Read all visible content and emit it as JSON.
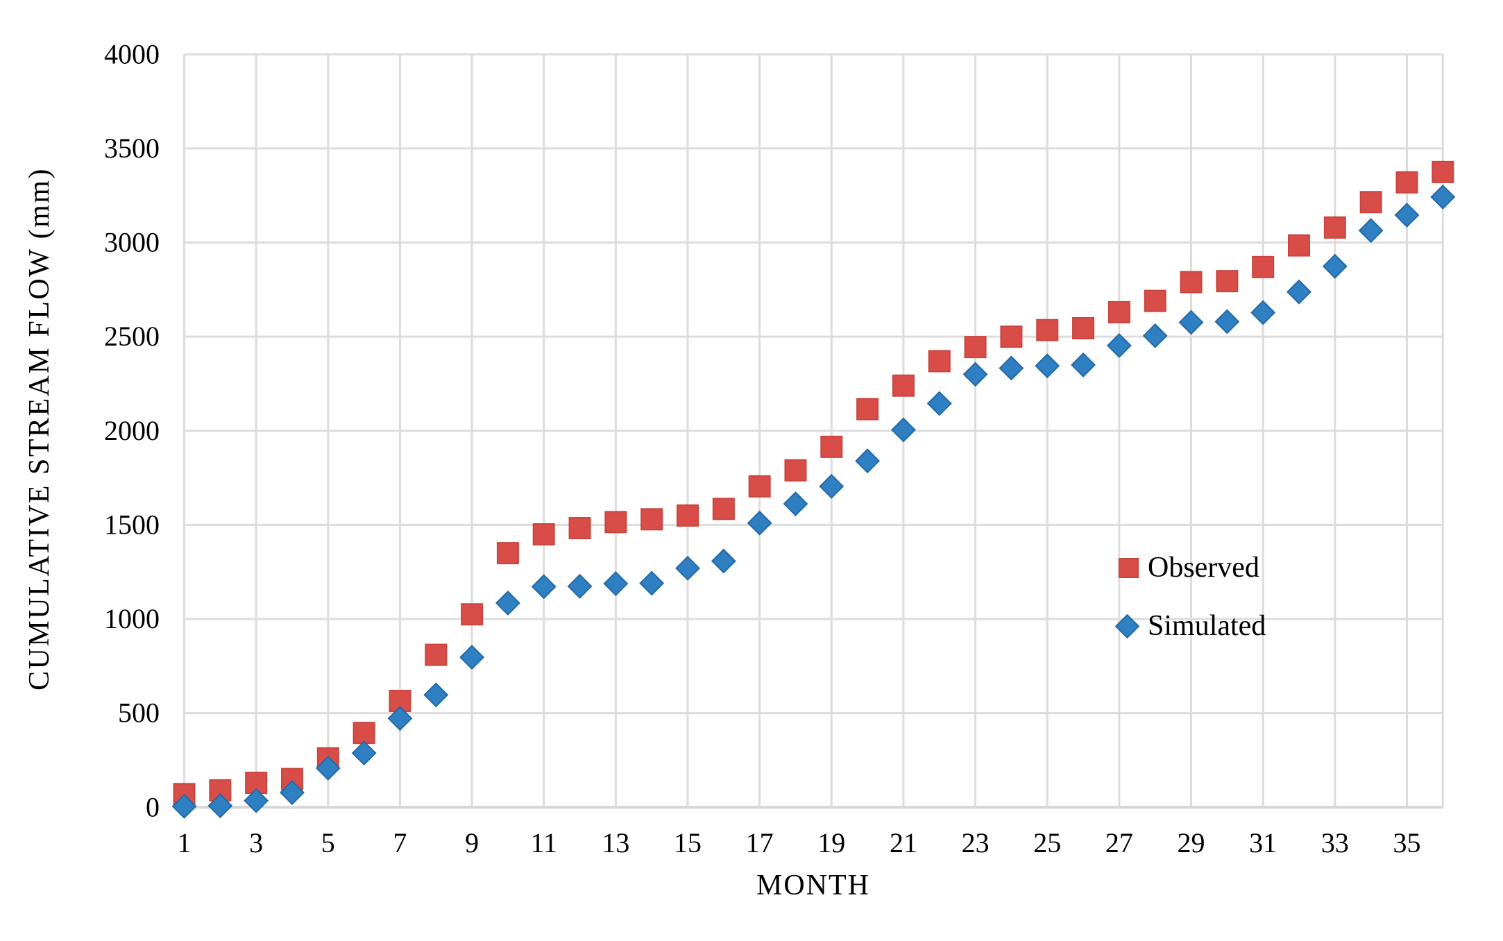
{
  "chart_data": {
    "type": "scatter",
    "title": "",
    "xlabel": "MONTH",
    "ylabel": "CUMULATIVE STREAM FLOW (mm)",
    "x": [
      1,
      2,
      3,
      4,
      5,
      6,
      7,
      8,
      9,
      10,
      11,
      12,
      13,
      14,
      15,
      16,
      17,
      18,
      19,
      20,
      21,
      22,
      23,
      24,
      25,
      26,
      27,
      28,
      29,
      30,
      31,
      32,
      33,
      34,
      35,
      36
    ],
    "series": [
      {
        "name": "Observed",
        "marker": "square",
        "color": "#d84d48",
        "edge_color": "#c9453f",
        "values": [
          70,
          90,
          130,
          150,
          260,
          395,
          565,
          810,
          1025,
          1350,
          1450,
          1483,
          1515,
          1530,
          1550,
          1585,
          1705,
          1790,
          1915,
          2115,
          2240,
          2370,
          2445,
          2500,
          2535,
          2545,
          2630,
          2690,
          2790,
          2795,
          2870,
          2985,
          3080,
          3215,
          3320,
          3375
        ]
      },
      {
        "name": "Simulated",
        "marker": "diamond",
        "color": "#2f80c3",
        "edge_color": "#2368a6",
        "values": [
          5,
          8,
          35,
          78,
          208,
          288,
          472,
          597,
          797,
          1085,
          1172,
          1174,
          1188,
          1190,
          1270,
          1308,
          1510,
          1612,
          1705,
          1840,
          2005,
          2145,
          2300,
          2333,
          2345,
          2350,
          2453,
          2505,
          2576,
          2580,
          2628,
          2738,
          2874,
          3064,
          3146,
          3242
        ]
      }
    ],
    "xlim": [
      1,
      36
    ],
    "ylim": [
      0,
      4000
    ],
    "x_ticks": [
      1,
      3,
      5,
      7,
      9,
      11,
      13,
      15,
      17,
      19,
      21,
      23,
      25,
      27,
      29,
      31,
      33,
      35
    ],
    "y_ticks": [
      0,
      500,
      1000,
      1500,
      2000,
      2500,
      3000,
      3500,
      4000
    ],
    "grid": true,
    "grid_color": "#dcdcdc",
    "axis_line_color": "#d6d6d6",
    "text_color": "#000000",
    "background": "#ffffff",
    "legend_position": "inside-right-middle"
  }
}
